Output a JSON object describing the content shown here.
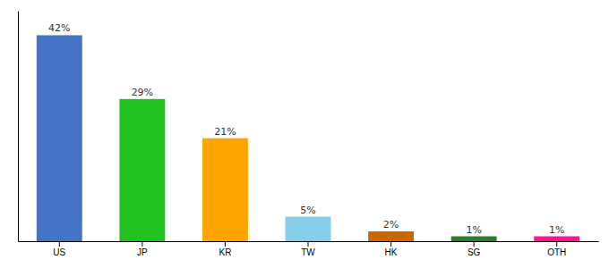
{
  "chart_data": {
    "type": "bar",
    "categories": [
      "US",
      "JP",
      "KR",
      "TW",
      "HK",
      "SG",
      "OTH"
    ],
    "values": [
      42,
      29,
      21,
      5,
      2,
      1,
      1
    ],
    "value_labels": [
      "42%",
      "29%",
      "21%",
      "5%",
      "2%",
      "1%",
      "1%"
    ],
    "colors": [
      "#4472C4",
      "#21C120",
      "#FFA500",
      "#87CEEB",
      "#CC6600",
      "#2E7D2E",
      "#FF1493"
    ],
    "ylim": [
      0,
      47
    ],
    "data_labels": true,
    "tick_labels": "x"
  }
}
